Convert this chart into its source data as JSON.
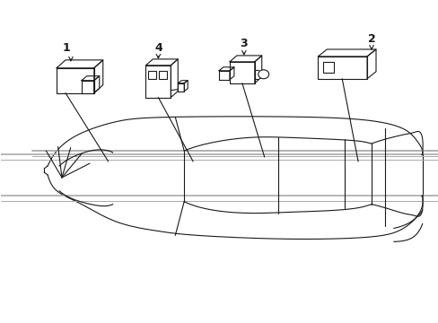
{
  "background_color": "#ffffff",
  "line_color": "#1a1a1a",
  "gray_color": "#aaaaaa",
  "fig_width": 4.89,
  "fig_height": 3.6,
  "dpi": 100
}
